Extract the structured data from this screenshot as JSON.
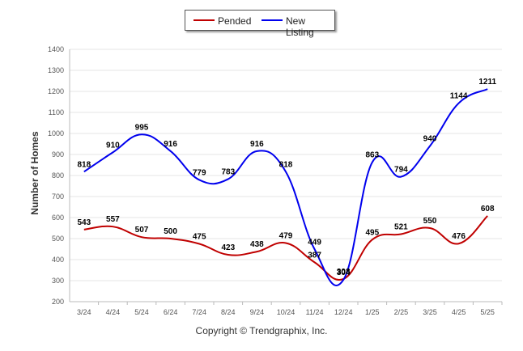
{
  "legend": {
    "pended_label": "Pended",
    "new_listing_label": "New Listing"
  },
  "copyright": "Copyright © Trendgraphix, Inc.",
  "colors": {
    "pended": "#c00000",
    "new_listing": "#0000ee"
  },
  "chart_data": {
    "type": "line",
    "title": "",
    "xlabel": "",
    "ylabel": "Number of Homes",
    "ylim": [
      200,
      1400
    ],
    "yticks": [
      200,
      300,
      400,
      500,
      600,
      700,
      800,
      900,
      1000,
      1100,
      1200,
      1300,
      1400
    ],
    "grid": true,
    "legend_position": "top",
    "categories": [
      "3/24",
      "4/24",
      "5/24",
      "6/24",
      "7/24",
      "8/24",
      "9/24",
      "10/24",
      "11/24",
      "12/24",
      "1/25",
      "2/25",
      "3/25",
      "4/25",
      "5/25"
    ],
    "series": [
      {
        "name": "Pended",
        "color": "#c00000",
        "values": [
          543,
          557,
          507,
          500,
          475,
          423,
          438,
          479,
          387,
          308,
          495,
          521,
          550,
          476,
          608
        ]
      },
      {
        "name": "New Listing",
        "color": "#0000ee",
        "values": [
          818,
          910,
          995,
          916,
          779,
          783,
          916,
          818,
          449,
          304,
          863,
          794,
          940,
          1144,
          1211
        ]
      }
    ]
  }
}
